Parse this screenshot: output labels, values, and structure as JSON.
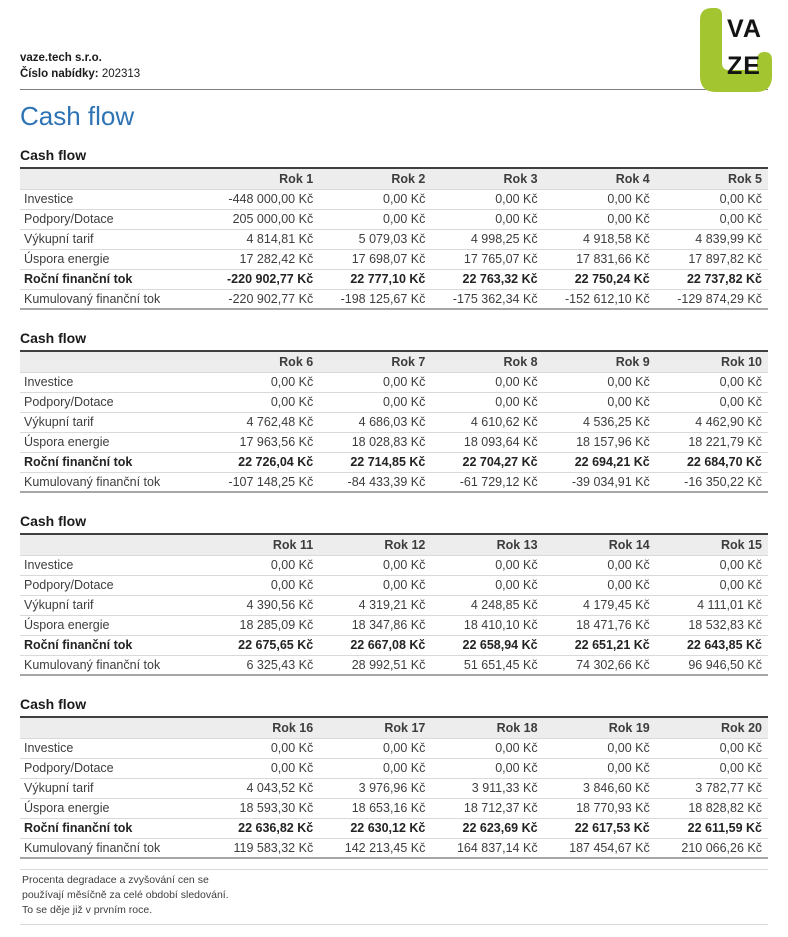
{
  "page_title": "Cash flow",
  "header": {
    "company": "vaze.tech s.r.o.",
    "offer_label": "Číslo nabídky:",
    "offer_number": "202313",
    "logo": {
      "line1": "VA",
      "line2": "ZE"
    }
  },
  "sections": [
    {
      "heading": "Cash flow",
      "columns": [
        "Rok 1",
        "Rok 2",
        "Rok 3",
        "Rok 4",
        "Rok 5"
      ],
      "rows": [
        {
          "label": "Investice",
          "bold": false,
          "values": [
            "-448 000,00 Kč",
            "0,00 Kč",
            "0,00 Kč",
            "0,00 Kč",
            "0,00 Kč"
          ]
        },
        {
          "label": "Podpory/Dotace",
          "bold": false,
          "values": [
            "205 000,00 Kč",
            "0,00 Kč",
            "0,00 Kč",
            "0,00 Kč",
            "0,00 Kč"
          ]
        },
        {
          "label": "Výkupní tarif",
          "bold": false,
          "values": [
            "4 814,81 Kč",
            "5 079,03 Kč",
            "4 998,25 Kč",
            "4 918,58 Kč",
            "4 839,99 Kč"
          ]
        },
        {
          "label": "Úspora energie",
          "bold": false,
          "values": [
            "17 282,42 Kč",
            "17 698,07 Kč",
            "17 765,07 Kč",
            "17 831,66 Kč",
            "17 897,82 Kč"
          ]
        },
        {
          "label": "Roční finanční tok",
          "bold": true,
          "values": [
            "-220 902,77 Kč",
            "22 777,10 Kč",
            "22 763,32 Kč",
            "22 750,24 Kč",
            "22 737,82 Kč"
          ]
        },
        {
          "label": "Kumulovaný finanční tok",
          "bold": false,
          "values": [
            "-220 902,77 Kč",
            "-198 125,67 Kč",
            "-175 362,34 Kč",
            "-152 612,10 Kč",
            "-129 874,29 Kč"
          ]
        }
      ]
    },
    {
      "heading": "Cash flow",
      "columns": [
        "Rok 6",
        "Rok 7",
        "Rok 8",
        "Rok 9",
        "Rok 10"
      ],
      "rows": [
        {
          "label": "Investice",
          "bold": false,
          "values": [
            "0,00 Kč",
            "0,00 Kč",
            "0,00 Kč",
            "0,00 Kč",
            "0,00 Kč"
          ]
        },
        {
          "label": "Podpory/Dotace",
          "bold": false,
          "values": [
            "0,00 Kč",
            "0,00 Kč",
            "0,00 Kč",
            "0,00 Kč",
            "0,00 Kč"
          ]
        },
        {
          "label": "Výkupní tarif",
          "bold": false,
          "values": [
            "4 762,48 Kč",
            "4 686,03 Kč",
            "4 610,62 Kč",
            "4 536,25 Kč",
            "4 462,90 Kč"
          ]
        },
        {
          "label": "Úspora energie",
          "bold": false,
          "values": [
            "17 963,56 Kč",
            "18 028,83 Kč",
            "18 093,64 Kč",
            "18 157,96 Kč",
            "18 221,79 Kč"
          ]
        },
        {
          "label": "Roční finanční tok",
          "bold": true,
          "values": [
            "22 726,04 Kč",
            "22 714,85 Kč",
            "22 704,27 Kč",
            "22 694,21 Kč",
            "22 684,70 Kč"
          ]
        },
        {
          "label": "Kumulovaný finanční tok",
          "bold": false,
          "values": [
            "-107 148,25 Kč",
            "-84 433,39 Kč",
            "-61 729,12 Kč",
            "-39 034,91 Kč",
            "-16 350,22 Kč"
          ]
        }
      ]
    },
    {
      "heading": "Cash flow",
      "columns": [
        "Rok 11",
        "Rok 12",
        "Rok 13",
        "Rok 14",
        "Rok 15"
      ],
      "rows": [
        {
          "label": "Investice",
          "bold": false,
          "values": [
            "0,00 Kč",
            "0,00 Kč",
            "0,00 Kč",
            "0,00 Kč",
            "0,00 Kč"
          ]
        },
        {
          "label": "Podpory/Dotace",
          "bold": false,
          "values": [
            "0,00 Kč",
            "0,00 Kč",
            "0,00 Kč",
            "0,00 Kč",
            "0,00 Kč"
          ]
        },
        {
          "label": "Výkupní tarif",
          "bold": false,
          "values": [
            "4 390,56 Kč",
            "4 319,21 Kč",
            "4 248,85 Kč",
            "4 179,45 Kč",
            "4 111,01 Kč"
          ]
        },
        {
          "label": "Úspora energie",
          "bold": false,
          "values": [
            "18 285,09 Kč",
            "18 347,86 Kč",
            "18 410,10 Kč",
            "18 471,76 Kč",
            "18 532,83 Kč"
          ]
        },
        {
          "label": "Roční finanční tok",
          "bold": true,
          "values": [
            "22 675,65 Kč",
            "22 667,08 Kč",
            "22 658,94 Kč",
            "22 651,21 Kč",
            "22 643,85 Kč"
          ]
        },
        {
          "label": "Kumulovaný finanční tok",
          "bold": false,
          "values": [
            "6 325,43 Kč",
            "28 992,51 Kč",
            "51 651,45 Kč",
            "74 302,66 Kč",
            "96 946,50 Kč"
          ]
        }
      ]
    },
    {
      "heading": "Cash flow",
      "columns": [
        "Rok 16",
        "Rok 17",
        "Rok 18",
        "Rok 19",
        "Rok 20"
      ],
      "rows": [
        {
          "label": "Investice",
          "bold": false,
          "values": [
            "0,00 Kč",
            "0,00 Kč",
            "0,00 Kč",
            "0,00 Kč",
            "0,00 Kč"
          ]
        },
        {
          "label": "Podpory/Dotace",
          "bold": false,
          "values": [
            "0,00 Kč",
            "0,00 Kč",
            "0,00 Kč",
            "0,00 Kč",
            "0,00 Kč"
          ]
        },
        {
          "label": "Výkupní tarif",
          "bold": false,
          "values": [
            "4 043,52 Kč",
            "3 976,96 Kč",
            "3 911,33 Kč",
            "3 846,60 Kč",
            "3 782,77 Kč"
          ]
        },
        {
          "label": "Úspora energie",
          "bold": false,
          "values": [
            "18 593,30 Kč",
            "18 653,16 Kč",
            "18 712,37 Kč",
            "18 770,93 Kč",
            "18 828,82 Kč"
          ]
        },
        {
          "label": "Roční finanční tok",
          "bold": true,
          "values": [
            "22 636,82 Kč",
            "22 630,12 Kč",
            "22 623,69 Kč",
            "22 617,53 Kč",
            "22 611,59 Kč"
          ]
        },
        {
          "label": "Kumulovaný finanční tok",
          "bold": false,
          "values": [
            "119 583,32 Kč",
            "142 213,45 Kč",
            "164 837,14 Kč",
            "187 454,67 Kč",
            "210 066,26 Kč"
          ]
        }
      ]
    }
  ],
  "note": {
    "line1": "Procenta degradace a zvyšování cen se",
    "line2": "používají měsíčně za celé období sledování.",
    "line3": "To se děje již v prvním roce."
  },
  "colors": {
    "title_blue": "#2e74b5",
    "logo_green": "#a3c52f",
    "table_top_border": "#404040",
    "table_bottom_border": "#a6a6a6",
    "table_header_bg": "#ededed",
    "row_divider": "#d9d9d9",
    "text": "#3d3d3d"
  }
}
